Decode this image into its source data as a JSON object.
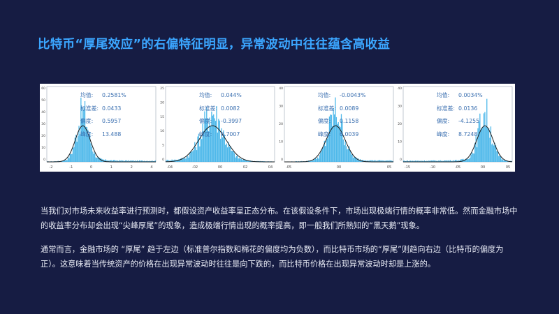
{
  "title": "比特币“厚尾效应”的右偏特征明显，异常波动中往往蕴含高收益",
  "panels": [
    {
      "stats": [
        {
          "label": "均值:",
          "value": "0.2581%"
        },
        {
          "label": "标准差:",
          "value": "0.0433"
        },
        {
          "label": "偏度:",
          "value": "0.5957"
        },
        {
          "label": "峰度:",
          "value": "13.488"
        }
      ],
      "x_ticks": [
        "-2",
        "-1",
        "0",
        "1",
        "2",
        "4"
      ],
      "y_ticks": [
        "60",
        "50",
        "40",
        "30",
        "20",
        "10",
        "0"
      ]
    },
    {
      "stats": [
        {
          "label": "均值:",
          "value": "0.044%"
        },
        {
          "label": "标准差:",
          "value": "0.0082"
        },
        {
          "label": "偏度:",
          "value": "-0.3997"
        },
        {
          "label": "峰度:",
          "value": "6.7007"
        }
      ],
      "x_ticks": [
        "-04",
        "-02",
        "00",
        "02",
        "04"
      ],
      "y_ticks": [
        "25",
        "20",
        "15",
        "10",
        "5",
        "0"
      ]
    },
    {
      "stats": [
        {
          "label": "均值:",
          "value": "-0.0043%"
        },
        {
          "label": "标准差:",
          "value": "0.0089"
        },
        {
          "label": "偏度:",
          "value": "0.1158"
        },
        {
          "label": "峰度:",
          "value": "6.0039"
        }
      ],
      "x_ticks": [
        "-05",
        "00",
        "05"
      ],
      "y_ticks": [
        "40",
        "30",
        "20",
        "10",
        "0"
      ]
    },
    {
      "stats": [
        {
          "label": "均值:",
          "value": "0.0034%"
        },
        {
          "label": "标准差:",
          "value": "0.0136"
        },
        {
          "label": "偏度:",
          "value": "-4.1255"
        },
        {
          "label": "峰度:",
          "value": "8.7248"
        }
      ],
      "x_ticks": [
        "-15",
        "-10",
        "-05",
        "00",
        "05"
      ],
      "y_ticks": [
        "40",
        "30",
        "20",
        "10",
        "0"
      ]
    }
  ],
  "paragraph1": "当我们对市场未来收益率进行预测时，都假设资产收益率呈正态分布。在该假设条件下，市场出现极端行情的概率非常低。然而金融市场中的收益率分布却会出现“尖峰厚尾”的现象，造成极端行情出现的概率提高，即一般我们所熟知的“黑天鹅”现象。",
  "paragraph2": "通常而言，金融市场的 “厚尾” 趋于左边（标准普尔指数和棉花的偏度均为负数），而比特币市场的“厚尾”则趋向右边（比特币的偏度为正）。这意味着当传统资产的价格在出现异常波动时往往是向下跌的，而比特币价格在出现异常波动时却是上涨的。",
  "colors": {
    "background": "#161c43",
    "title": "#3ba6ff",
    "bars": "#4db8ea",
    "curve": "#1d1d1d",
    "stat_text": "#3a6fb0"
  }
}
